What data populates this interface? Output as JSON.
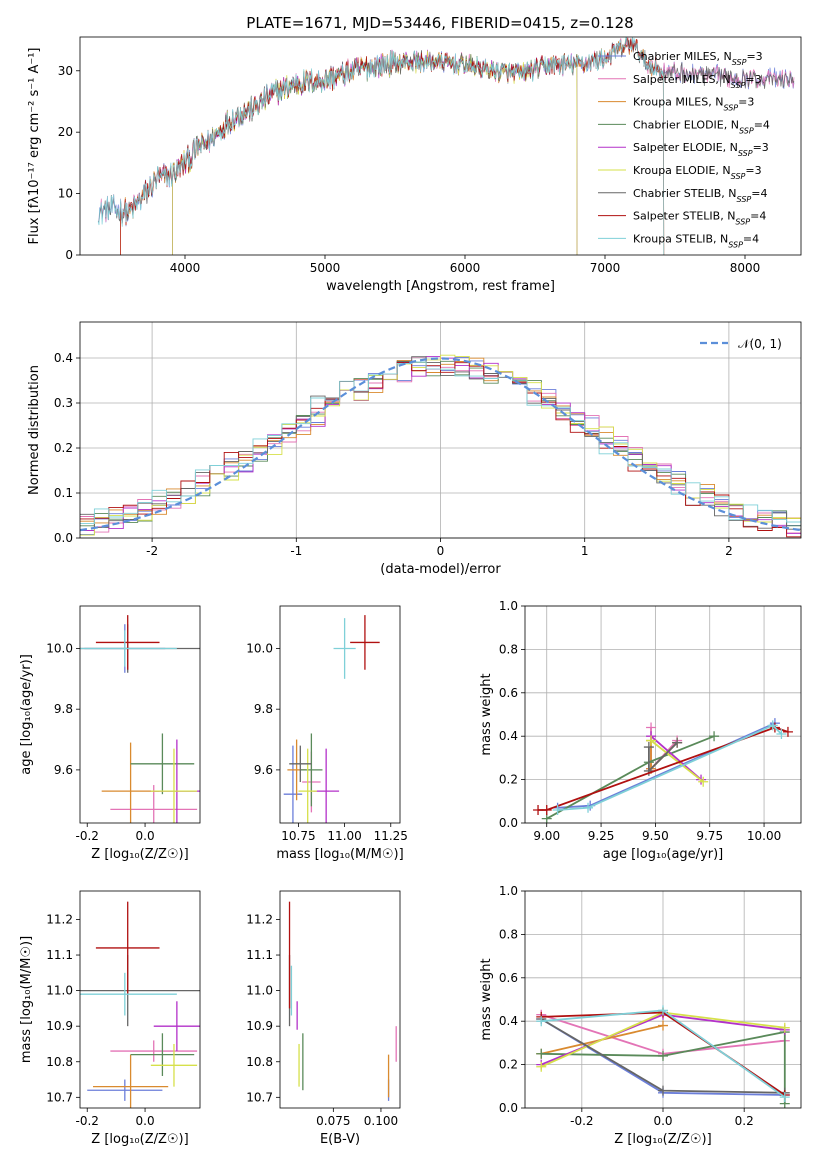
{
  "title": "PLATE=1671, MJD=53446, FIBERID=0415, z=0.128",
  "colors": {
    "chabrier_miles": "#6b7ed9",
    "salpeter_miles": "#e374b6",
    "kroupa_miles": "#d98a2f",
    "chabrier_elodie": "#5a8a5a",
    "salpeter_elodie": "#b331c9",
    "kroupa_elodie": "#d6e04a",
    "chabrier_stelib": "#666666",
    "salpeter_stelib": "#b01010",
    "kroupa_stelib": "#7fd0d8",
    "normal": "#5b8fd9"
  },
  "chart_data": [
    {
      "id": "spectrum",
      "type": "line",
      "xlabel": "wavelength [Angstrom, rest frame]",
      "ylabel": "Flux [fλ10⁻¹⁷ erg cm⁻² s⁻¹ A⁻¹]",
      "xlim": [
        3250,
        8400
      ],
      "ylim": [
        0,
        35.5
      ],
      "xticks": [
        4000,
        5000,
        6000,
        7000,
        8000
      ],
      "yticks": [
        0,
        10,
        20,
        30
      ],
      "legend_position": "upper-right",
      "continuum_x": [
        3380,
        3500,
        3600,
        3700,
        3800,
        3900,
        4000,
        4100,
        4200,
        4300,
        4400,
        4500,
        4600,
        4800,
        5000,
        5200,
        5400,
        5600,
        5800,
        6000,
        6200,
        6400,
        6600,
        6800,
        7000,
        7100,
        7200,
        7300,
        7400,
        7600,
        7900,
        8350
      ],
      "continuum_y": [
        7,
        7.5,
        6.8,
        9.5,
        12.5,
        13,
        15,
        17.5,
        19,
        21.5,
        23,
        24,
        26,
        28,
        28.5,
        30,
        31,
        31.5,
        31.5,
        31,
        30,
        29.5,
        31,
        31,
        32,
        33.5,
        34.5,
        31,
        30,
        29.5,
        29,
        28.5
      ],
      "series": [
        {
          "name": "Chabrier MILES, N_SSP=3",
          "color_key": "chabrier_miles",
          "range": [
            3380,
            8350
          ]
        },
        {
          "name": "Salpeter MILES, N_SSP=3",
          "color_key": "salpeter_miles",
          "range": [
            3380,
            8350
          ]
        },
        {
          "name": "Kroupa MILES, N_SSP=3",
          "color_key": "kroupa_miles",
          "range": [
            3540,
            7420
          ]
        },
        {
          "name": "Chabrier ELODIE, N_SSP=4",
          "color_key": "chabrier_elodie",
          "range": [
            3910,
            6800
          ]
        },
        {
          "name": "Salpeter ELODIE, N_SSP=3",
          "color_key": "salpeter_elodie",
          "range": [
            3910,
            6800
          ]
        },
        {
          "name": "Kroupa ELODIE, N_SSP=3",
          "color_key": "kroupa_elodie",
          "range": [
            3910,
            6800
          ]
        },
        {
          "name": "Chabrier STELIB, N_SSP=4",
          "color_key": "chabrier_stelib",
          "range": [
            3380,
            8350
          ]
        },
        {
          "name": "Salpeter STELIB, N_SSP=4",
          "color_key": "salpeter_stelib",
          "range": [
            3540,
            7420
          ]
        },
        {
          "name": "Kroupa STELIB, N_SSP=4",
          "color_key": "kroupa_stelib",
          "range": [
            3380,
            7420
          ]
        }
      ]
    },
    {
      "id": "residual_histogram",
      "type": "line",
      "xlabel": "(data-model)/error",
      "ylabel": "Normed distribution",
      "xlim": [
        -2.5,
        2.5
      ],
      "ylim": [
        0,
        0.48
      ],
      "xticks": [
        -2,
        -1,
        0,
        1,
        2
      ],
      "yticks": [
        0.0,
        0.1,
        0.2,
        0.3,
        0.4
      ],
      "grid": true,
      "legend_position": "upper-right",
      "gaussian": {
        "name": "𝒩(0, 1)",
        "mu": 0,
        "sigma": 1,
        "color_key": "normal"
      },
      "bin_width": 0.1,
      "bin_start": -2.5
    },
    {
      "id": "age_vs_Z",
      "type": "scatter",
      "xlabel": "Z [log₁₀(Z/Z☉)]",
      "ylabel": "age  [log₁₀(age/yr)]",
      "xlim": [
        -0.225,
        0.19
      ],
      "ylim": [
        9.425,
        10.14
      ],
      "xticks": [
        -0.2,
        0.0
      ],
      "yticks": [
        9.6,
        9.8,
        10.0
      ],
      "points": [
        {
          "series": "chabrier_miles",
          "x": -0.07,
          "y": 10.0,
          "xerr": 0.14,
          "yerr": 0.08
        },
        {
          "series": "salpeter_miles",
          "x": 0.03,
          "y": 9.47,
          "xerr": 0.15,
          "yerr": 0.08
        },
        {
          "series": "kroupa_miles",
          "x": -0.05,
          "y": 9.53,
          "xerr": 0.1,
          "yerr": 0.16
        },
        {
          "series": "chabrier_elodie",
          "x": 0.06,
          "y": 9.62,
          "xerr": 0.11,
          "yerr": 0.1
        },
        {
          "series": "salpeter_elodie",
          "x": 0.11,
          "y": 9.53,
          "xerr": 0.08,
          "yerr": 0.17
        },
        {
          "series": "kroupa_elodie",
          "x": 0.1,
          "y": 9.53,
          "xerr": 0.08,
          "yerr": 0.14
        },
        {
          "series": "chabrier_stelib",
          "x": -0.06,
          "y": 10.0,
          "xerr": 0.25,
          "yerr": 0.08
        },
        {
          "series": "salpeter_stelib",
          "x": -0.06,
          "y": 10.02,
          "xerr": 0.11,
          "yerr": 0.09
        },
        {
          "series": "kroupa_stelib",
          "x": -0.07,
          "y": 10.0,
          "xerr": 0.18,
          "yerr": 0.06
        }
      ]
    },
    {
      "id": "age_vs_mass",
      "type": "scatter",
      "xlabel": "mass [log₁₀(M/M☉)]",
      "ylabel": "",
      "xlim": [
        10.65,
        11.3
      ],
      "ylim": [
        9.425,
        10.14
      ],
      "xticks": [
        10.75,
        11.0,
        11.25
      ],
      "yticks": [
        9.6,
        9.8,
        10.0
      ],
      "points": [
        {
          "series": "chabrier_miles",
          "x": 10.72,
          "y": 9.52,
          "xerr": 0.05,
          "yerr": 0.16
        },
        {
          "series": "salpeter_miles",
          "x": 10.82,
          "y": 9.56,
          "xerr": 0.05,
          "yerr": 0.1
        },
        {
          "series": "kroupa_miles",
          "x": 10.74,
          "y": 9.6,
          "xerr": 0.05,
          "yerr": 0.1
        },
        {
          "series": "chabrier_elodie",
          "x": 10.82,
          "y": 9.6,
          "xerr": 0.06,
          "yerr": 0.12
        },
        {
          "series": "salpeter_elodie",
          "x": 10.9,
          "y": 9.53,
          "xerr": 0.07,
          "yerr": 0.14
        },
        {
          "series": "kroupa_elodie",
          "x": 10.8,
          "y": 9.53,
          "xerr": 0.05,
          "yerr": 0.14
        },
        {
          "series": "chabrier_stelib",
          "x": 10.76,
          "y": 9.62,
          "xerr": 0.06,
          "yerr": 0.06
        },
        {
          "series": "salpeter_stelib",
          "x": 11.11,
          "y": 10.02,
          "xerr": 0.08,
          "yerr": 0.09
        },
        {
          "series": "kroupa_stelib",
          "x": 11.0,
          "y": 10.0,
          "xerr": 0.06,
          "yerr": 0.1
        }
      ]
    },
    {
      "id": "mass_weight_vs_age",
      "type": "line",
      "xlabel": "age  [log₁₀(age/yr)]",
      "ylabel": "mass weight",
      "xlim": [
        8.9,
        10.17
      ],
      "ylim": [
        0.0,
        1.0
      ],
      "xticks": [
        9.0,
        9.25,
        9.5,
        9.75,
        10.0
      ],
      "yticks": [
        0.0,
        0.2,
        0.4,
        0.6,
        0.8,
        1.0
      ],
      "grid": true,
      "series": [
        {
          "color_key": "chabrier_miles",
          "x": [
            9.05,
            9.2,
            10.05
          ],
          "y": [
            0.07,
            0.08,
            0.46
          ]
        },
        {
          "color_key": "salpeter_miles",
          "x": [
            9.48,
            9.48,
            9.6
          ],
          "y": [
            0.44,
            0.25,
            0.38
          ]
        },
        {
          "color_key": "kroupa_miles",
          "x": [
            9.48,
            9.48,
            9.6
          ],
          "y": [
            0.38,
            0.25,
            0.37
          ]
        },
        {
          "color_key": "chabrier_elodie",
          "x": [
            9.0,
            9.47,
            9.77
          ],
          "y": [
            0.02,
            0.28,
            0.4
          ]
        },
        {
          "color_key": "salpeter_elodie",
          "x": [
            9.48,
            9.71
          ],
          "y": [
            0.4,
            0.2
          ]
        },
        {
          "color_key": "kroupa_elodie",
          "x": [
            9.48,
            9.72
          ],
          "y": [
            0.38,
            0.19
          ]
        },
        {
          "color_key": "chabrier_stelib",
          "x": [
            9.47,
            9.47,
            9.6
          ],
          "y": [
            0.35,
            0.24,
            0.37
          ]
        },
        {
          "color_key": "salpeter_stelib",
          "x": [
            8.96,
            9.0,
            10.05,
            10.11
          ],
          "y": [
            0.06,
            0.06,
            0.44,
            0.42
          ]
        },
        {
          "color_key": "kroupa_stelib",
          "x": [
            9.05,
            9.19,
            10.04,
            10.08
          ],
          "y": [
            0.06,
            0.07,
            0.45,
            0.41
          ]
        }
      ]
    },
    {
      "id": "mass_vs_Z",
      "type": "scatter",
      "xlabel": "Z [log₁₀(Z/Z☉)]",
      "ylabel": "mass [log₁₀(M/M☉)]",
      "xlim": [
        -0.225,
        0.19
      ],
      "ylim": [
        10.67,
        11.28
      ],
      "xticks": [
        -0.2,
        0.0
      ],
      "yticks": [
        10.7,
        10.8,
        10.9,
        11.0,
        11.1,
        11.2
      ],
      "points": [
        {
          "series": "chabrier_miles",
          "x": -0.07,
          "y": 10.72,
          "xerr": 0.13,
          "yerr": 0.03
        },
        {
          "series": "salpeter_miles",
          "x": 0.03,
          "y": 10.83,
          "xerr": 0.15,
          "yerr": 0.03
        },
        {
          "series": "kroupa_miles",
          "x": -0.05,
          "y": 10.73,
          "xerr": 0.13,
          "yerr": 0.09
        },
        {
          "series": "chabrier_elodie",
          "x": 0.06,
          "y": 10.82,
          "xerr": 0.11,
          "yerr": 0.06
        },
        {
          "series": "salpeter_elodie",
          "x": 0.11,
          "y": 10.9,
          "xerr": 0.08,
          "yerr": 0.07
        },
        {
          "series": "kroupa_elodie",
          "x": 0.1,
          "y": 10.79,
          "xerr": 0.08,
          "yerr": 0.06
        },
        {
          "series": "chabrier_stelib",
          "x": -0.06,
          "y": 11.0,
          "xerr": 0.25,
          "yerr": 0.1
        },
        {
          "series": "salpeter_stelib",
          "x": -0.06,
          "y": 11.12,
          "xerr": 0.11,
          "yerr": 0.13
        },
        {
          "series": "kroupa_stelib",
          "x": -0.07,
          "y": 10.99,
          "xerr": 0.18,
          "yerr": 0.06
        }
      ]
    },
    {
      "id": "mass_vs_ebv",
      "type": "scatter",
      "xlabel": "E(B-V)",
      "ylabel": "",
      "xlim": [
        0.047,
        0.11
      ],
      "ylim": [
        10.67,
        11.28
      ],
      "xticks": [
        0.075,
        0.1
      ],
      "yticks": [
        10.7,
        10.8,
        10.9,
        11.0,
        11.1,
        11.2
      ],
      "points": [
        {
          "series": "chabrier_miles",
          "x": 0.104,
          "y": 10.72,
          "xerr": 0,
          "yerr": 0.03
        },
        {
          "series": "salpeter_miles",
          "x": 0.108,
          "y": 10.85,
          "xerr": 0,
          "yerr": 0.05
        },
        {
          "series": "kroupa_miles",
          "x": 0.104,
          "y": 10.76,
          "xerr": 0,
          "yerr": 0.06
        },
        {
          "series": "chabrier_elodie",
          "x": 0.059,
          "y": 10.8,
          "xerr": 0,
          "yerr": 0.08
        },
        {
          "series": "salpeter_elodie",
          "x": 0.056,
          "y": 10.93,
          "xerr": 0,
          "yerr": 0.04
        },
        {
          "series": "kroupa_elodie",
          "x": 0.057,
          "y": 10.79,
          "xerr": 0,
          "yerr": 0.06
        },
        {
          "series": "chabrier_stelib",
          "x": 0.052,
          "y": 11.0,
          "xerr": 0,
          "yerr": 0.1
        },
        {
          "series": "salpeter_stelib",
          "x": 0.052,
          "y": 11.1,
          "xerr": 0,
          "yerr": 0.15
        },
        {
          "series": "kroupa_stelib",
          "x": 0.053,
          "y": 11.0,
          "xerr": 0,
          "yerr": 0.07
        }
      ]
    },
    {
      "id": "mass_weight_vs_Z",
      "type": "line",
      "xlabel": "Z [log₁₀(Z/Z☉)]",
      "ylabel": "mass weight",
      "xlim": [
        -0.34,
        0.34
      ],
      "ylim": [
        0.0,
        1.0
      ],
      "xticks": [
        -0.2,
        0.0,
        0.2
      ],
      "yticks": [
        0.0,
        0.2,
        0.4,
        0.6,
        0.8,
        1.0
      ],
      "grid": true,
      "series": [
        {
          "color_key": "chabrier_miles",
          "x": [
            -0.3,
            0.0,
            0.3
          ],
          "y": [
            0.41,
            0.07,
            0.06
          ]
        },
        {
          "color_key": "salpeter_miles",
          "x": [
            -0.3,
            0.0,
            0.3
          ],
          "y": [
            0.43,
            0.25,
            0.31
          ]
        },
        {
          "color_key": "kroupa_miles",
          "x": [
            -0.3,
            0.0
          ],
          "y": [
            0.25,
            0.38
          ]
        },
        {
          "color_key": "chabrier_elodie",
          "x": [
            -0.3,
            0.0,
            0.3,
            0.3
          ],
          "y": [
            0.25,
            0.24,
            0.35,
            0.02
          ]
        },
        {
          "color_key": "salpeter_elodie",
          "x": [
            -0.3,
            0.0,
            0.3
          ],
          "y": [
            0.2,
            0.43,
            0.36
          ]
        },
        {
          "color_key": "kroupa_elodie",
          "x": [
            -0.3,
            0.0,
            0.3
          ],
          "y": [
            0.19,
            0.44,
            0.37
          ]
        },
        {
          "color_key": "chabrier_stelib",
          "x": [
            -0.3,
            0.0,
            0.3
          ],
          "y": [
            0.41,
            0.08,
            0.07
          ]
        },
        {
          "color_key": "salpeter_stelib",
          "x": [
            -0.3,
            0.0,
            0.3
          ],
          "y": [
            0.42,
            0.44,
            0.06
          ]
        },
        {
          "color_key": "kroupa_stelib",
          "x": [
            -0.3,
            0.0,
            0.3
          ],
          "y": [
            0.4,
            0.45,
            0.05
          ]
        }
      ]
    }
  ]
}
